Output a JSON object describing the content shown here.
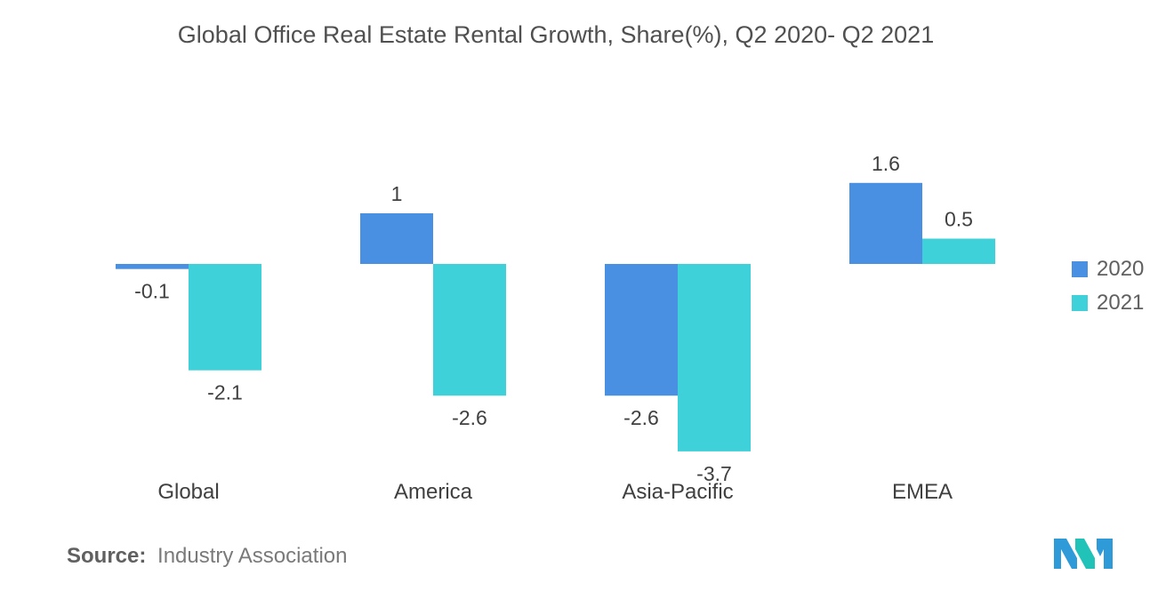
{
  "chart_data": {
    "type": "bar",
    "title": "Global Office Real Estate Rental Growth, Share(%), Q2 2020- Q2 2021",
    "categories": [
      "Global",
      "America",
      "Asia-Pacific",
      "EMEA"
    ],
    "series": [
      {
        "name": "2020",
        "color": "#4a90e2",
        "values": [
          -0.1,
          1,
          -2.6,
          1.6
        ],
        "labels": [
          "-0.1",
          "1",
          "-2.6",
          "1.6"
        ]
      },
      {
        "name": "2021",
        "color": "#3fd1d9",
        "values": [
          -2.1,
          -2.6,
          -3.7,
          0.5
        ],
        "labels": [
          "-2.1",
          "-2.6",
          "-3.7",
          "0.5"
        ]
      }
    ],
    "xlabel": "",
    "ylabel": "",
    "ylim": [
      -3.7,
      1.6
    ],
    "grid": false,
    "legend_position": "right"
  },
  "source": {
    "label": "Source:",
    "text": "Industry Association"
  },
  "logo": {
    "icon": "mordor-intelligence-logo-icon",
    "colors": [
      "#2f9ad8",
      "#21c2b7"
    ]
  }
}
